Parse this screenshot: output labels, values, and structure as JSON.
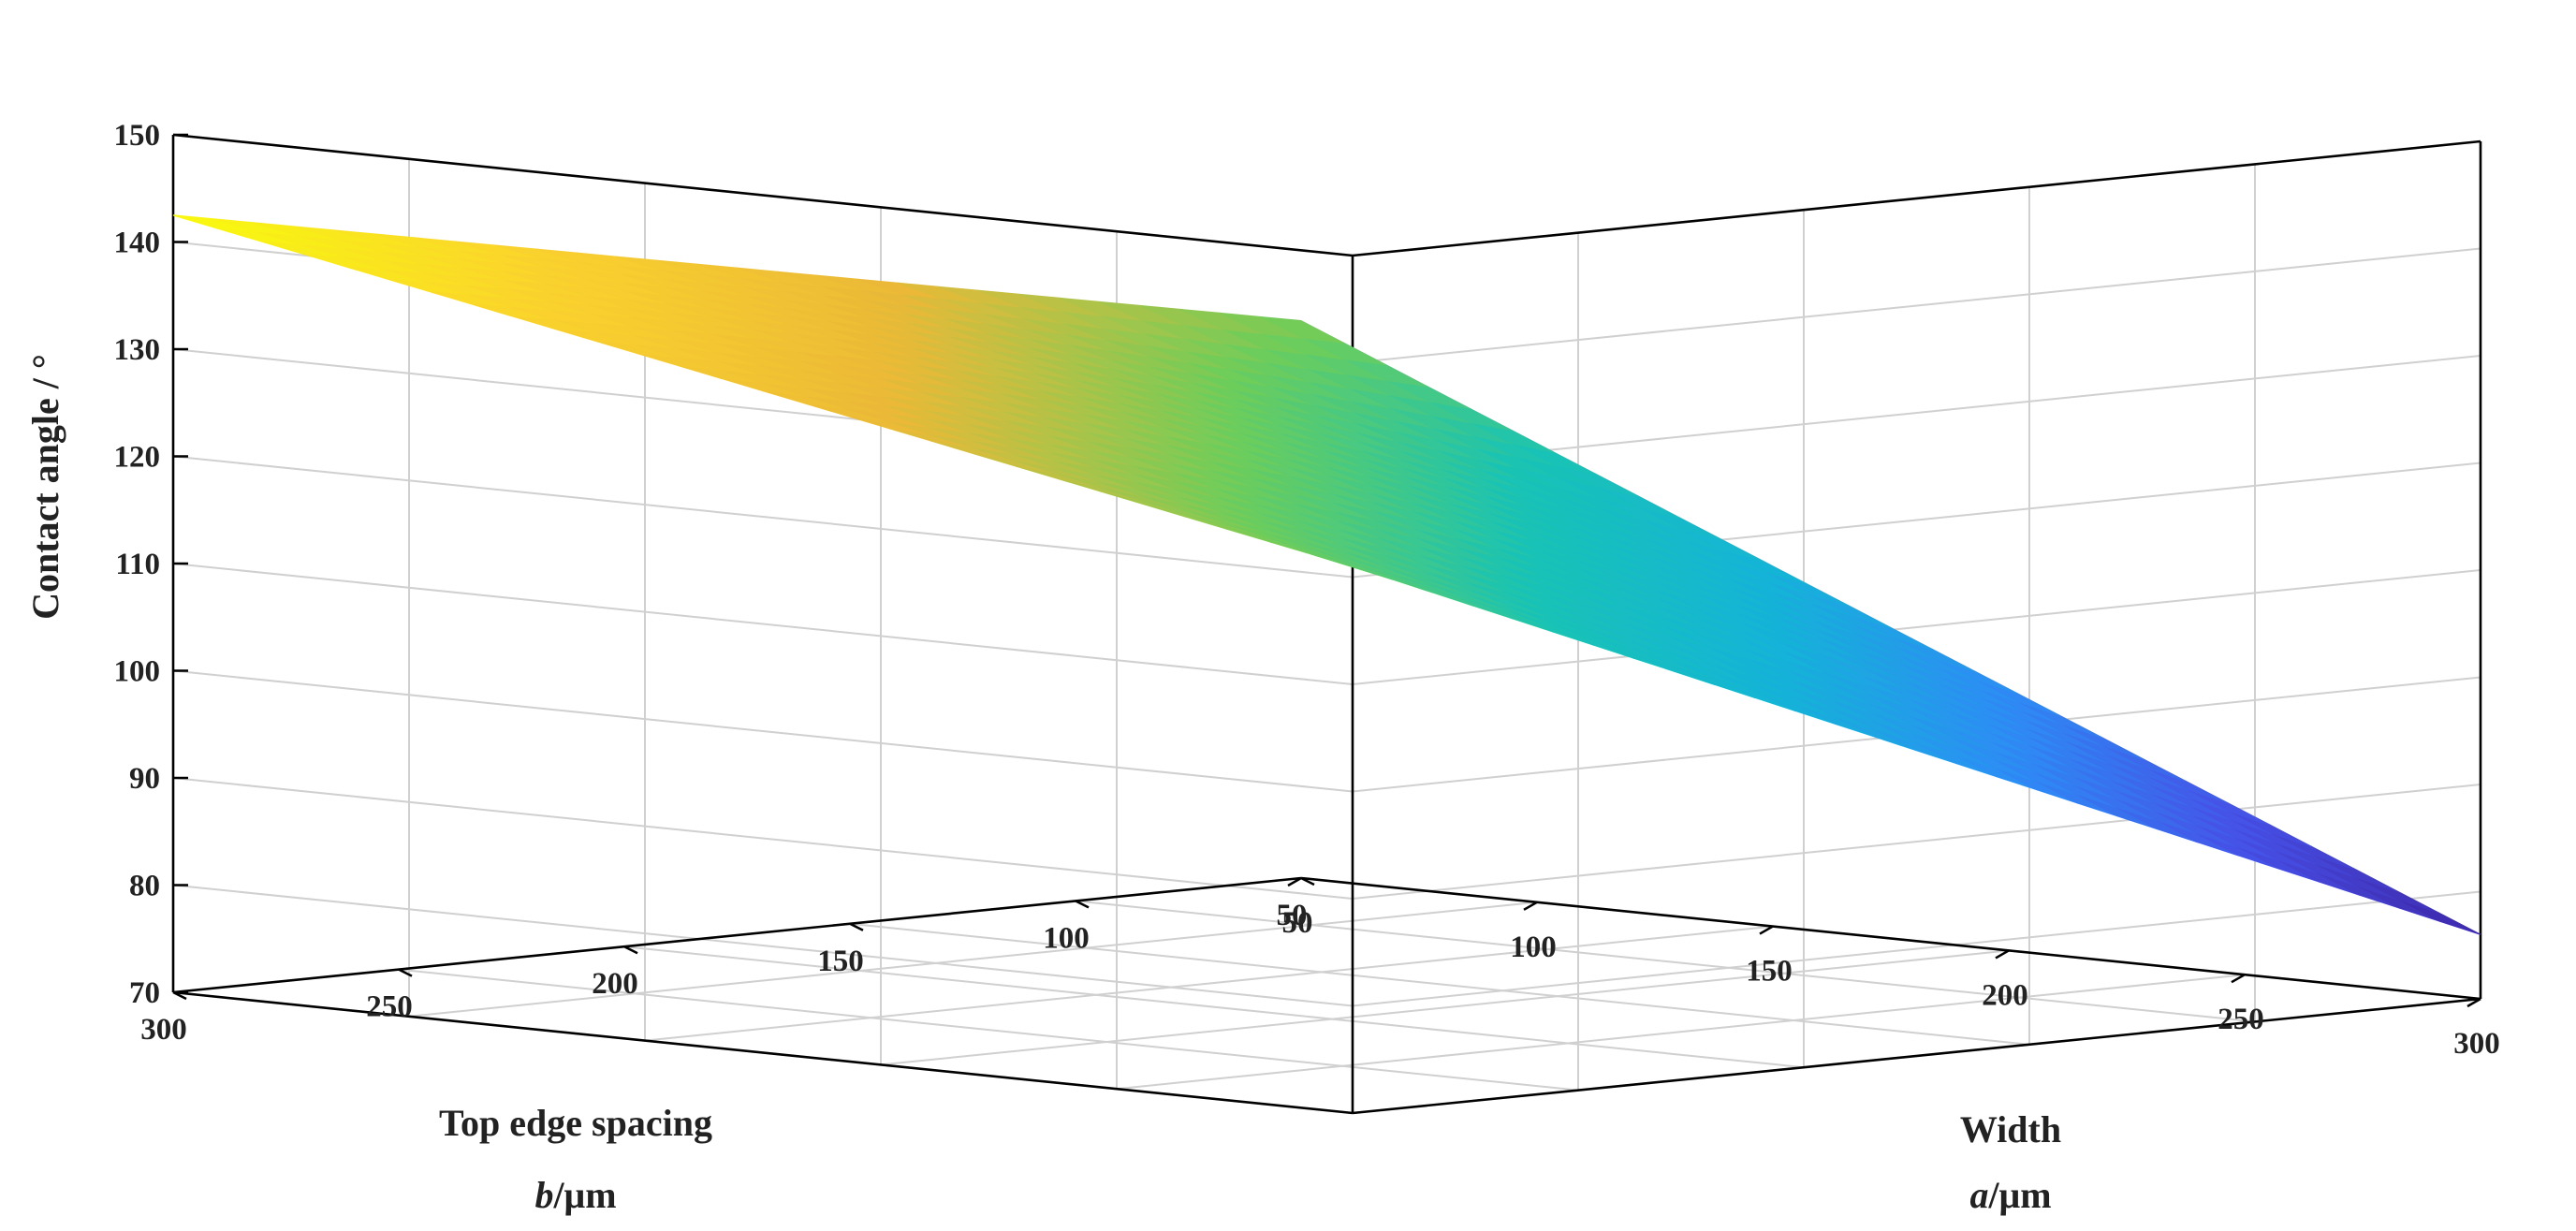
{
  "chart_data": {
    "type": "surface3d",
    "z_label": "Contact angle / °",
    "x_label": "Width",
    "x_unit_symbol": "a",
    "x_unit": "/μm",
    "y_label": "Top edge spacing",
    "y_unit_symbol": "b",
    "y_unit": "/μm",
    "x_range": [
      50,
      300
    ],
    "y_range": [
      50,
      300
    ],
    "z_range": [
      70,
      150
    ],
    "x_ticks": [
      "50",
      "100",
      "150",
      "200",
      "250",
      "300"
    ],
    "y_ticks": [
      "50",
      "100",
      "150",
      "200",
      "250",
      "300"
    ],
    "z_ticks": [
      "70",
      "80",
      "90",
      "100",
      "110",
      "120",
      "130",
      "140",
      "150"
    ],
    "grid": true,
    "colormap": "parula",
    "surface": {
      "x": [
        50,
        300
      ],
      "y": [
        50,
        300
      ],
      "z": [
        [
          122,
          142.5
        ],
        [
          76,
          121
        ]
      ]
    },
    "colors": {
      "surface_low": "#3e26a8",
      "surface_high": "#f9fb0e",
      "axis": "#000000",
      "grid": "#d0d0d0"
    }
  }
}
